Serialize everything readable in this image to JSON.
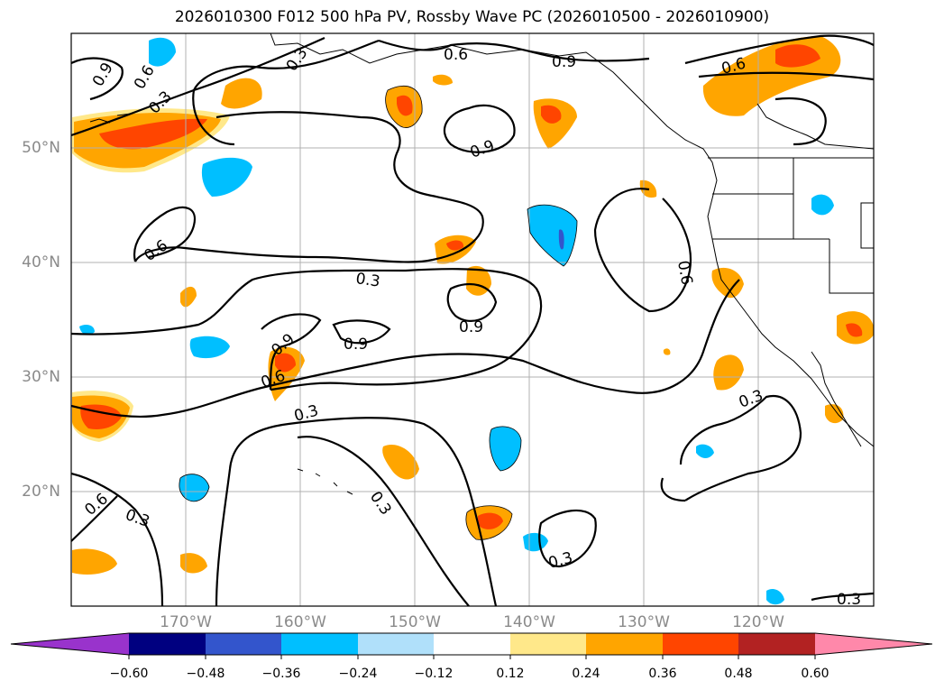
{
  "title": "2026010300 F012 500 hPa PV, Rossby Wave PC (2026010500 - 2026010900)",
  "map": {
    "lon_range": [
      -180,
      -110
    ],
    "lat_range": [
      10,
      60
    ],
    "lon_labels": [
      "170°W",
      "160°W",
      "150°W",
      "140°W",
      "130°W",
      "120°W"
    ],
    "lat_labels": [
      "20°N",
      "30°N",
      "40°N",
      "50°N"
    ],
    "contour_labels": [
      "0.3",
      "0.6",
      "0.9"
    ]
  },
  "colorbar": {
    "ticks": [
      "−0.60",
      "−0.48",
      "−0.36",
      "−0.24",
      "−0.12",
      "0.12",
      "0.24",
      "0.36",
      "0.48",
      "0.60"
    ],
    "colors": [
      "#9933cc",
      "#000080",
      "#3355cc",
      "#00bfff",
      "#b0e0fa",
      "#ffffff",
      "#ffe88a",
      "#ffa500",
      "#ff4500",
      "#b22222",
      "#ff88aa"
    ]
  }
}
